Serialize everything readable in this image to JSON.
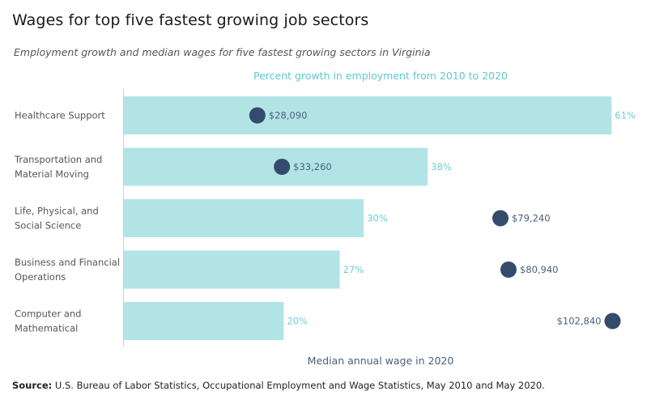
{
  "title": "Wages for top five fastest growing job sectors",
  "subtitle": "Employment growth and median wages for five fastest growing sectors in Virginia",
  "source": {
    "prefix": "Source:",
    "text": " U.S. Bureau of Labor Statistics, Occupational Employment and Wage Statistics, May 2010 and May 2020."
  },
  "chart_data": {
    "type": "bar",
    "orientation": "horizontal",
    "categories": [
      [
        "Healthcare Support"
      ],
      [
        "Transportation and",
        "Material Moving"
      ],
      [
        "Life, Physical, and",
        "Social Science"
      ],
      [
        "Business and Financial",
        "Operations"
      ],
      [
        "Computer and",
        "Mathematical"
      ]
    ],
    "series": [
      {
        "name": "Percent growth in employment from 2010 to 2020",
        "mark": "bar",
        "values": [
          61,
          38,
          30,
          27,
          20
        ],
        "labels": [
          "61%",
          "38%",
          "30%",
          "27%",
          "20%"
        ],
        "color": "#b2e4e6"
      },
      {
        "name": "Median annual wage in 2020",
        "mark": "dot",
        "values": [
          28090,
          33260,
          79240,
          80940,
          102840
        ],
        "labels": [
          "$28,090",
          "$33,260",
          "$79,240",
          "$80,940",
          "$102,840"
        ],
        "color": "#344c6c"
      }
    ],
    "xlabel_top": "Percent growth in employment from 2010 to 2020",
    "xlabel_bottom": "Median annual wage in 2020",
    "xlim_percent": [
      0,
      63
    ],
    "xlim_wage": [
      0,
      106000
    ],
    "grid": false,
    "label_color_bars": "#6ccfd4",
    "label_color_wages": "#4a5f7a"
  }
}
